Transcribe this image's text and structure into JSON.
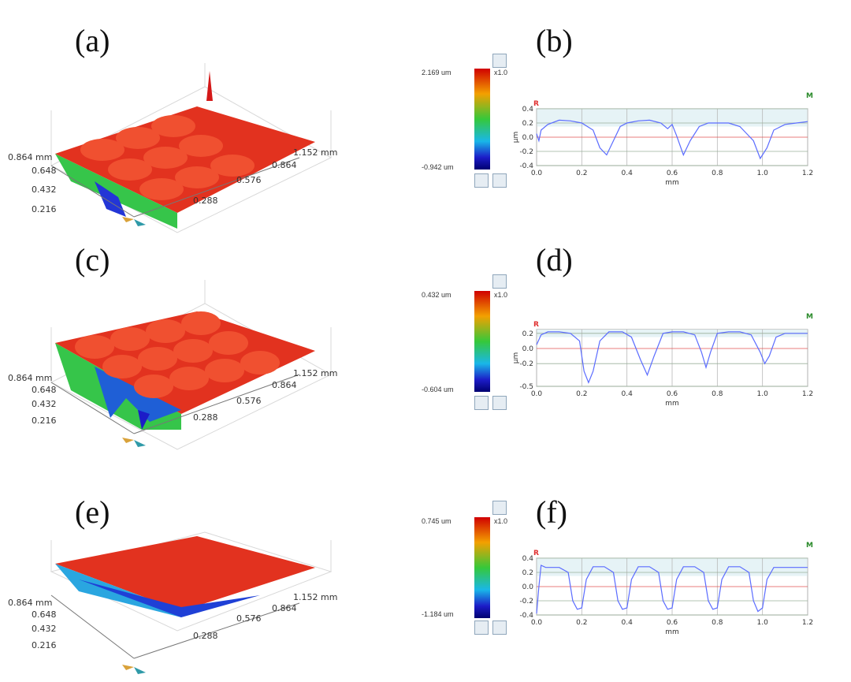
{
  "panels": [
    {
      "letter": "(a)",
      "cb_max": "2.169 um",
      "cb_min": "-0.942 um",
      "scale": "x1.0"
    },
    {
      "letter": "(c)",
      "cb_max": "0.432 um",
      "cb_min": "-0.604 um",
      "scale": "x1.0"
    },
    {
      "letter": "(e)",
      "cb_max": "0.745 um",
      "cb_min": "-1.184 um",
      "scale": "x1.0"
    }
  ],
  "profile_letters": [
    "(b)",
    "(d)",
    "(f)"
  ],
  "surface_axes": {
    "y_ticks": [
      "0.864 mm",
      "0.648",
      "0.432",
      "0.216"
    ],
    "x_ticks": [
      "0.288",
      "0.576",
      "0.864",
      "1.152 mm"
    ]
  },
  "colors": {
    "surface_top": "#d62a1e",
    "surface_mid": "#33cc33",
    "surface_low": "#1f2bcc",
    "profile_line": "#5b6cff",
    "ref_R": "#e03030",
    "ref_M": "#2a8a2a"
  },
  "chart_data": [
    {
      "type": "line",
      "title": "",
      "xlabel": "mm",
      "ylabel": "μm",
      "xlim": [
        0,
        1.2
      ],
      "ylim": [
        -0.4,
        0.4
      ],
      "xticks": [
        "0.0",
        "0.2",
        "0.4",
        "0.6",
        "0.8",
        "1.0",
        "1.2"
      ],
      "yticks": [
        "0.4",
        "0.2",
        "0.0",
        "-0.2",
        "-0.4"
      ],
      "markers": {
        "left": "R",
        "right": "M"
      },
      "x": [
        0,
        0.01,
        0.02,
        0.05,
        0.1,
        0.15,
        0.2,
        0.25,
        0.28,
        0.31,
        0.34,
        0.37,
        0.4,
        0.45,
        0.5,
        0.55,
        0.58,
        0.6,
        0.62,
        0.65,
        0.68,
        0.72,
        0.76,
        0.8,
        0.85,
        0.9,
        0.93,
        0.96,
        0.99,
        1.02,
        1.05,
        1.1,
        1.15,
        1.2
      ],
      "values": [
        0.05,
        -0.05,
        0.1,
        0.18,
        0.24,
        0.23,
        0.2,
        0.1,
        -0.15,
        -0.25,
        -0.05,
        0.15,
        0.2,
        0.23,
        0.24,
        0.2,
        0.12,
        0.18,
        0.02,
        -0.25,
        -0.05,
        0.15,
        0.2,
        0.2,
        0.2,
        0.15,
        0.05,
        -0.05,
        -0.3,
        -0.15,
        0.1,
        0.18,
        0.2,
        0.22
      ]
    },
    {
      "type": "line",
      "title": "",
      "xlabel": "mm",
      "ylabel": "μm",
      "xlim": [
        0,
        1.2
      ],
      "ylim": [
        -0.5,
        0.25
      ],
      "xticks": [
        "0.0",
        "0.2",
        "0.4",
        "0.6",
        "0.8",
        "1.0",
        "1.2"
      ],
      "yticks": [
        "0.2",
        "0.0",
        "-0.2",
        "-0.5"
      ],
      "markers": {
        "left": "R",
        "right": "M"
      },
      "x": [
        0,
        0.02,
        0.05,
        0.1,
        0.15,
        0.19,
        0.21,
        0.23,
        0.25,
        0.28,
        0.32,
        0.38,
        0.42,
        0.46,
        0.49,
        0.52,
        0.56,
        0.6,
        0.65,
        0.7,
        0.73,
        0.75,
        0.77,
        0.8,
        0.85,
        0.9,
        0.95,
        0.99,
        1.01,
        1.03,
        1.06,
        1.1,
        1.15,
        1.2
      ],
      "values": [
        0.05,
        0.18,
        0.22,
        0.22,
        0.2,
        0.1,
        -0.3,
        -0.45,
        -0.3,
        0.1,
        0.22,
        0.22,
        0.15,
        -0.15,
        -0.35,
        -0.1,
        0.2,
        0.22,
        0.22,
        0.18,
        -0.05,
        -0.25,
        -0.05,
        0.2,
        0.22,
        0.22,
        0.18,
        -0.05,
        -0.2,
        -0.1,
        0.15,
        0.2,
        0.2,
        0.2
      ]
    },
    {
      "type": "line",
      "title": "",
      "xlabel": "mm",
      "ylabel": "",
      "xlim": [
        0,
        1.2
      ],
      "ylim": [
        -0.4,
        0.4
      ],
      "xticks": [
        "0.0",
        "0.2",
        "0.4",
        "0.6",
        "0.8",
        "1.0",
        "1.2"
      ],
      "yticks": [
        "0.4",
        "0.2",
        "0.0",
        "-0.2",
        "-0.4"
      ],
      "markers": {
        "left": "R",
        "right": "M"
      },
      "x": [
        0,
        0.01,
        0.02,
        0.04,
        0.1,
        0.14,
        0.16,
        0.18,
        0.2,
        0.22,
        0.25,
        0.3,
        0.34,
        0.36,
        0.38,
        0.4,
        0.42,
        0.45,
        0.5,
        0.54,
        0.56,
        0.58,
        0.6,
        0.62,
        0.65,
        0.7,
        0.74,
        0.76,
        0.78,
        0.8,
        0.82,
        0.85,
        0.9,
        0.94,
        0.96,
        0.98,
        1.0,
        1.02,
        1.05,
        1.1,
        1.15,
        1.2
      ],
      "values": [
        -0.38,
        0.0,
        0.3,
        0.27,
        0.27,
        0.2,
        -0.2,
        -0.32,
        -0.3,
        0.1,
        0.28,
        0.28,
        0.2,
        -0.2,
        -0.32,
        -0.3,
        0.1,
        0.28,
        0.28,
        0.2,
        -0.2,
        -0.32,
        -0.3,
        0.1,
        0.28,
        0.28,
        0.2,
        -0.2,
        -0.32,
        -0.3,
        0.1,
        0.28,
        0.28,
        0.2,
        -0.2,
        -0.35,
        -0.3,
        0.1,
        0.27,
        0.27,
        0.27,
        0.27
      ]
    }
  ]
}
